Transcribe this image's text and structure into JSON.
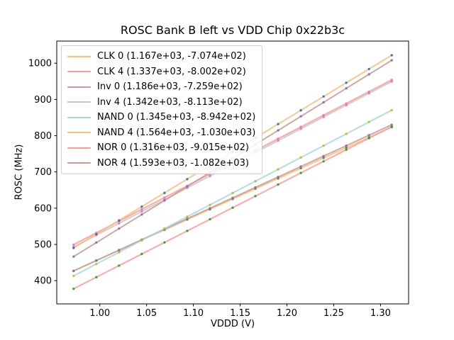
{
  "chart_data": {
    "type": "line",
    "title": "ROSC Bank B left vs VDD Chip 0x22b3c",
    "xlabel": "VDDD (V)",
    "ylabel": "ROSC (MHz)",
    "xlim": [
      0.954,
      1.33
    ],
    "ylim": [
      336,
      1061
    ],
    "xticks": [
      "1.00",
      "1.05",
      "1.10",
      "1.15",
      "1.20",
      "1.25",
      "1.30"
    ],
    "xtick_values": [
      1.0,
      1.05,
      1.1,
      1.15,
      1.2,
      1.25,
      1.3
    ],
    "yticks": [
      "400",
      "500",
      "600",
      "700",
      "800",
      "900",
      "1000"
    ],
    "ytick_values": [
      400,
      500,
      600,
      700,
      800,
      900,
      1000
    ],
    "grid": false,
    "legend_position": "upper left",
    "x_data_range": [
      0.972,
      1.312
    ],
    "points_per_series": 15,
    "series": [
      {
        "name": "CLK 0",
        "label": "CLK 0 (1.167e+03, -7.074e+02)",
        "slope": 1167,
        "intercept": -707.4,
        "line_color": "#ffbb78",
        "marker_color": "#2ca02c"
      },
      {
        "name": "CLK 4",
        "label": "CLK 4 (1.337e+03, -8.002e+02)",
        "slope": 1337,
        "intercept": -800.2,
        "line_color": "#ff9896",
        "marker_color": "#e377c2"
      },
      {
        "name": "Inv 0",
        "label": "Inv 0 (1.186e+03, -7.259e+02)",
        "slope": 1186,
        "intercept": -725.9,
        "line_color": "#c49c94",
        "marker_color": "#9467bd"
      },
      {
        "name": "Inv 4",
        "label": "Inv 4 (1.342e+03, -8.113e+02)",
        "slope": 1342,
        "intercept": -811.3,
        "line_color": "#c7c7c7",
        "marker_color": "#e377c2"
      },
      {
        "name": "NAND 0",
        "label": "NAND 0 (1.345e+03, -8.942e+02)",
        "slope": 1345,
        "intercept": -894.2,
        "line_color": "#9edae5",
        "marker_color": "#bcbd22"
      },
      {
        "name": "NAND 4",
        "label": "NAND 4 (1.564e+03, -1.030e+03)",
        "slope": 1564,
        "intercept": -1030.0,
        "line_color": "#ffbb78",
        "marker_color": "#1f77b4"
      },
      {
        "name": "NOR 0",
        "label": "NOR 0 (1.316e+03, -9.015e+02)",
        "slope": 1316,
        "intercept": -901.5,
        "line_color": "#ff9896",
        "marker_color": "#2ca02c"
      },
      {
        "name": "NOR 4",
        "label": "NOR 4 (1.593e+03, -1.082e+03)",
        "slope": 1593,
        "intercept": -1082.0,
        "line_color": "#c49c94",
        "marker_color": "#9467bd"
      }
    ]
  }
}
